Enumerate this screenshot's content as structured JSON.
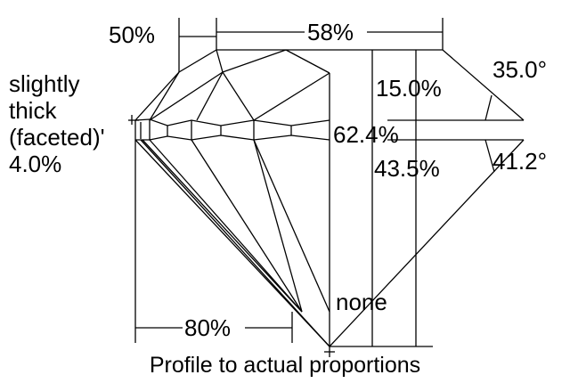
{
  "diagram": {
    "table_percent": "58%",
    "star_length": "50%",
    "crown_height": "15.0%",
    "crown_angle": "35.0°",
    "girdle": {
      "line1": "slightly",
      "line2": "thick",
      "line3": "(faceted)'",
      "line4": "4.0%"
    },
    "total_depth": "62.4%",
    "pavilion_depth": "43.5%",
    "pavilion_angle": "41.2°",
    "lower_half_length": "80%",
    "culet": "none",
    "caption": "Profile to actual proportions"
  }
}
